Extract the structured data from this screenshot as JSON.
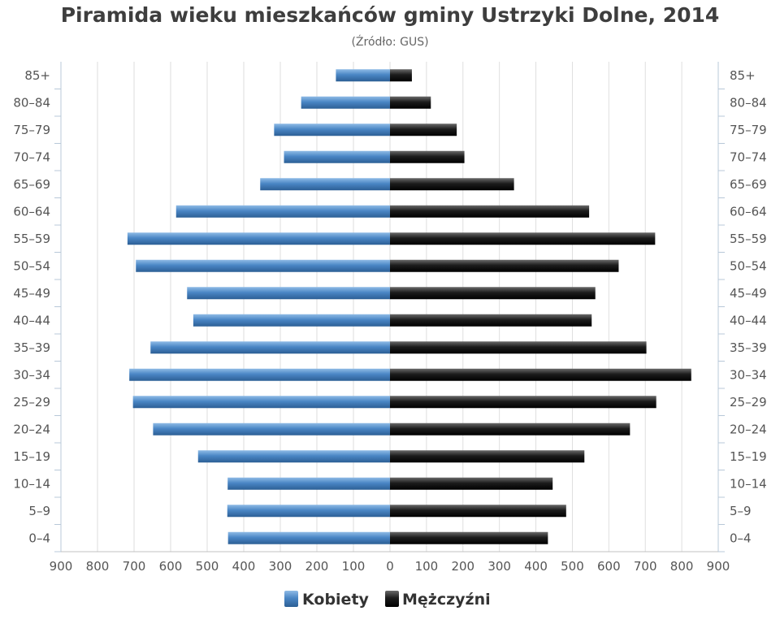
{
  "chart_data": {
    "type": "bar",
    "orientation": "horizontal-pyramid",
    "title": "Piramida wieku mieszkańców gminy Ustrzyki Dolne, 2014",
    "subtitle": "(Źródło: GUS)",
    "categories": [
      "0–4",
      "5–9",
      "10–14",
      "15–19",
      "20–24",
      "25–29",
      "30–34",
      "35–39",
      "40–44",
      "45–49",
      "50–54",
      "55–59",
      "60–64",
      "65–69",
      "70–74",
      "75–79",
      "80–84",
      "85+"
    ],
    "series": [
      {
        "name": "Kobiety",
        "side": "left",
        "color": "#4a86c5",
        "values": [
          443,
          445,
          444,
          525,
          648,
          703,
          713,
          655,
          538,
          555,
          695,
          718,
          585,
          355,
          290,
          317,
          243,
          148
        ]
      },
      {
        "name": "Mężczyźni",
        "side": "right",
        "color": "#1a1a1a",
        "values": [
          433,
          483,
          446,
          533,
          658,
          730,
          826,
          703,
          553,
          563,
          627,
          727,
          546,
          340,
          204,
          183,
          112,
          60
        ]
      }
    ],
    "xlim": [
      -900,
      900
    ],
    "x_ticks": [
      900,
      800,
      700,
      600,
      500,
      400,
      300,
      200,
      100,
      0,
      100,
      200,
      300,
      400,
      500,
      600,
      700,
      800,
      900
    ],
    "grid": true,
    "legend_position": "bottom-center"
  }
}
